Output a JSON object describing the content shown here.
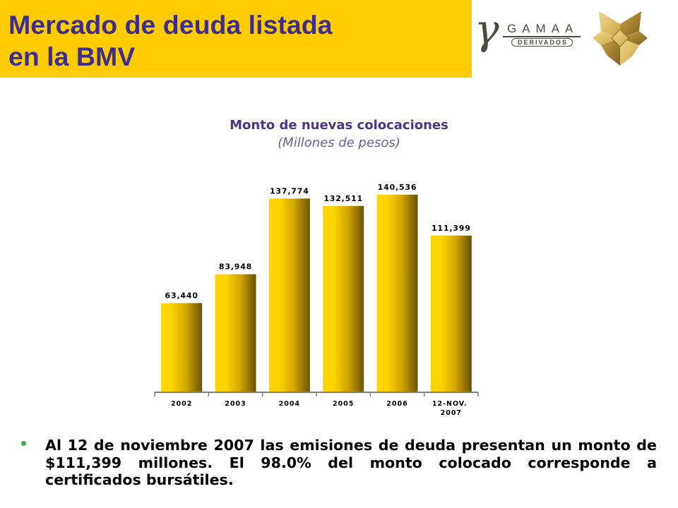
{
  "slide": {
    "title_line1": "Mercado de deuda listada",
    "title_line2": "en la BMV"
  },
  "logo": {
    "symbol": "γ",
    "name": "GAMAA",
    "tagline": "DERIVADOS"
  },
  "icons": {
    "emblem": "bmv-emblem-icon",
    "bullet": "bullet-icon"
  },
  "chart_data": {
    "type": "bar",
    "title": "Monto de nuevas colocaciones",
    "subtitle": "(Millones de pesos)",
    "categories": [
      "2002",
      "2003",
      "2004",
      "2005",
      "2006",
      "12-NOV. 2007"
    ],
    "values": [
      63440,
      83948,
      137774,
      132511,
      140536,
      111399
    ],
    "ylim": [
      0,
      150000
    ],
    "data_labels": true,
    "grid": false,
    "legend": false
  },
  "bullet": {
    "text": "Al 12 de noviembre 2007 las emisiones de deuda presentan un monto de $111,399 millones. El 98.0% del monto colocado corresponde a certificados bursátiles."
  },
  "colors": {
    "banner": "#FFCC00",
    "title": "#3C2D8E",
    "logo": "#4A4A40",
    "emblem_light": "#F0D98C",
    "emblem_mid": "#C9A443",
    "emblem_dark": "#7E6220",
    "chart_title": "#4B3687",
    "chart_subtitle": "#6B5F96",
    "bar_light": "#FFD400",
    "bar_mid": "#D4A800",
    "bar_dark": "#6A5206",
    "axis": "#808080",
    "bullet": "#3DAE49",
    "text": "#000000"
  }
}
